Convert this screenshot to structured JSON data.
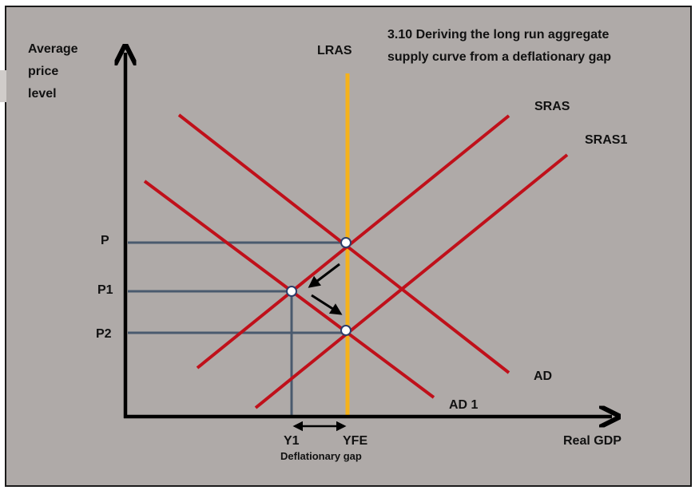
{
  "title": {
    "line1": "3.10 Deriving the long run aggregate",
    "line2": "supply curve from a deflationary gap"
  },
  "y_axis": {
    "line1": "Average",
    "line2": "price",
    "line3": "level"
  },
  "x_axis_label": "Real GDP",
  "curves": {
    "lras": "LRAS",
    "sras": "SRAS",
    "sras1": "SRAS1",
    "ad": "AD",
    "ad1": "AD 1"
  },
  "price_levels": {
    "p": "P",
    "p1": "P1",
    "p2": "P2"
  },
  "output_levels": {
    "y1": "Y1",
    "yfe": "YFE"
  },
  "gap_label": "Deflationary gap",
  "colors": {
    "background": "#afaaa8",
    "curves": "#c0101a",
    "lras": "#f5b21b",
    "guides": "#4a5a6e",
    "axes": "#000000"
  }
}
